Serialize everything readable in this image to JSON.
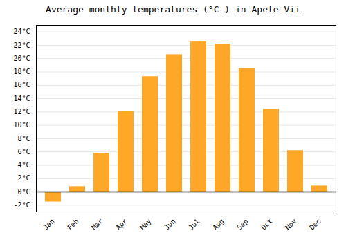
{
  "chart_data": {
    "type": "bar",
    "title": "Average monthly temperatures (°C ) in Apele Vii",
    "categories": [
      "Jan",
      "Feb",
      "Mar",
      "Apr",
      "May",
      "Jun",
      "Jul",
      "Aug",
      "Sep",
      "Oct",
      "Nov",
      "Dec"
    ],
    "values": [
      -1.5,
      0.8,
      5.8,
      12.1,
      17.3,
      20.6,
      22.5,
      22.2,
      18.5,
      12.4,
      6.2,
      0.9
    ],
    "color": "#FFA726",
    "ylim": [
      -3,
      25
    ],
    "yticks": [
      {
        "value": -2,
        "label": "-2°C"
      },
      {
        "value": 0,
        "label": "0°C"
      },
      {
        "value": 2,
        "label": "2°C"
      },
      {
        "value": 4,
        "label": "4°C"
      },
      {
        "value": 6,
        "label": "6°C"
      },
      {
        "value": 8,
        "label": "8°C"
      },
      {
        "value": 10,
        "label": "10°C"
      },
      {
        "value": 12,
        "label": "12°C"
      },
      {
        "value": 14,
        "label": "14°C"
      },
      {
        "value": 16,
        "label": "16°C"
      },
      {
        "value": 18,
        "label": "18°C"
      },
      {
        "value": 20,
        "label": "20°C"
      },
      {
        "value": 22,
        "label": "22°C"
      },
      {
        "value": 24,
        "label": "24°C"
      }
    ],
    "grid": true
  }
}
